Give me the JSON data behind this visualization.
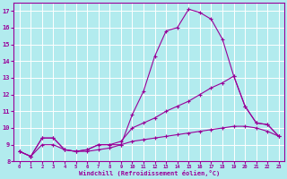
{
  "xlabel": "Windchill (Refroidissement éolien,°C)",
  "x": [
    0,
    1,
    2,
    3,
    4,
    5,
    6,
    7,
    8,
    9,
    10,
    11,
    12,
    13,
    14,
    15,
    16,
    17,
    18,
    19,
    20,
    21,
    22,
    23
  ],
  "line1": [
    8.6,
    8.3,
    9.4,
    9.4,
    8.7,
    8.6,
    8.7,
    9.0,
    9.0,
    9.0,
    10.8,
    12.2,
    14.3,
    15.8,
    16.0,
    17.1,
    16.9,
    16.5,
    15.3,
    13.1,
    11.3,
    10.3,
    10.2,
    9.5
  ],
  "line2": [
    8.6,
    8.3,
    9.4,
    9.4,
    8.7,
    8.6,
    8.7,
    9.0,
    9.0,
    9.2,
    10.0,
    10.3,
    10.6,
    11.0,
    11.3,
    11.6,
    12.0,
    12.4,
    12.7,
    13.1,
    11.3,
    10.3,
    10.2,
    9.5
  ],
  "line3": [
    8.6,
    8.3,
    9.0,
    9.0,
    8.7,
    8.6,
    8.6,
    8.7,
    8.8,
    9.0,
    9.2,
    9.3,
    9.4,
    9.5,
    9.6,
    9.7,
    9.8,
    9.9,
    10.0,
    10.1,
    10.1,
    10.0,
    9.8,
    9.5
  ],
  "line_color": "#990099",
  "bg_color": "#b2ebee",
  "grid_color": "#ffffff",
  "ylim": [
    8,
    17.5
  ],
  "xlim": [
    -0.5,
    23.5
  ]
}
